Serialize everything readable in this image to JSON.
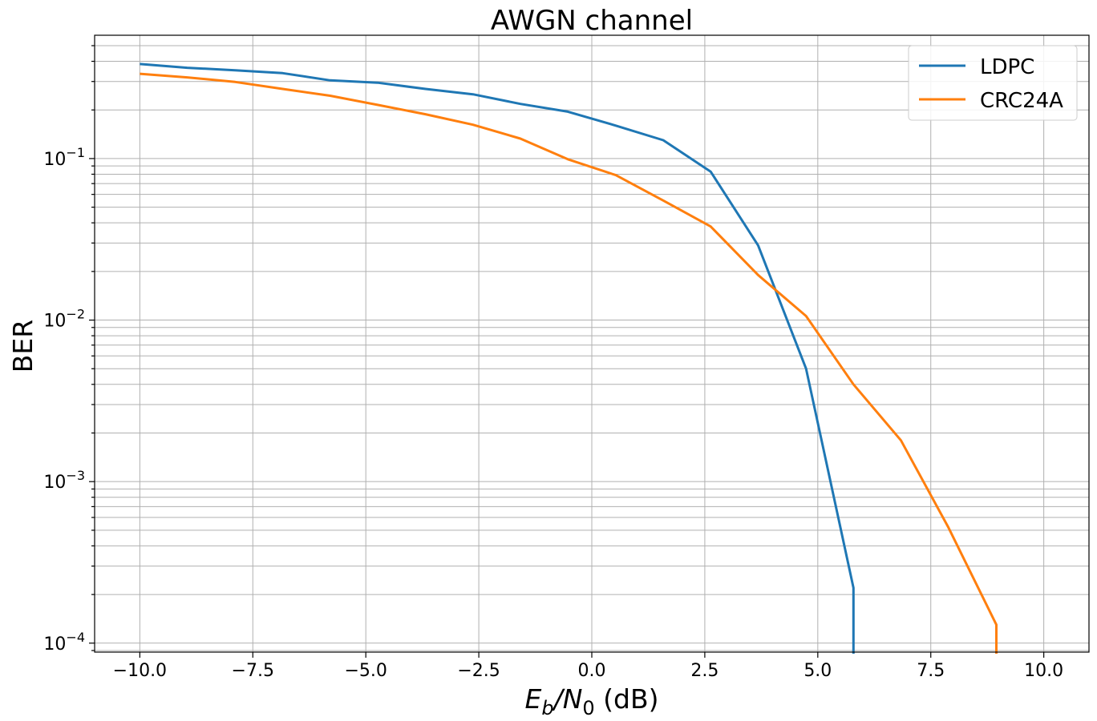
{
  "chart_data": {
    "type": "line",
    "title": "AWGN channel",
    "xlabel": {
      "pre": "E",
      "sub1": "b",
      "mid": "/N",
      "sub2": "0",
      "post": " (dB)"
    },
    "ylabel": "BER",
    "xlim": [
      -11,
      11
    ],
    "ylim": [
      8.8e-05,
      0.58
    ],
    "yscale": "log",
    "grid": true,
    "legend_position": "top-right",
    "x_ticks": [
      "−10.0",
      "−7.5",
      "−5.0",
      "−2.5",
      "0.0",
      "2.5",
      "5.0",
      "7.5",
      "10.0"
    ],
    "x_tick_values": [
      -10,
      -7.5,
      -5,
      -2.5,
      0,
      2.5,
      5,
      7.5,
      10
    ],
    "y_ticks": [
      {
        "value": 0.1,
        "base": "10",
        "exp": "−1"
      },
      {
        "value": 0.01,
        "base": "10",
        "exp": "−2"
      },
      {
        "value": 0.001,
        "base": "10",
        "exp": "−3"
      },
      {
        "value": 0.0001,
        "base": "10",
        "exp": "−4"
      }
    ],
    "series": [
      {
        "name": "LDPC",
        "color": "#1f77b4",
        "x": [
          -10,
          -8.95,
          -7.89,
          -6.84,
          -5.79,
          -4.74,
          -3.68,
          -2.63,
          -1.58,
          -0.53,
          0.53,
          1.58,
          2.63,
          3.68,
          4.74,
          5.79
        ],
        "y": [
          0.385,
          0.365,
          0.352,
          0.338,
          0.305,
          0.295,
          0.27,
          0.25,
          0.218,
          0.195,
          0.16,
          0.13,
          0.083,
          0.029,
          0.005,
          0.00022
        ]
      },
      {
        "name": "CRC24A",
        "color": "#ff7f0e",
        "x": [
          -10,
          -8.95,
          -7.89,
          -6.84,
          -5.79,
          -4.74,
          -3.68,
          -2.63,
          -1.58,
          -0.53,
          0.53,
          1.58,
          2.63,
          3.68,
          4.74,
          5.79,
          6.84,
          7.89,
          8.95
        ],
        "y": [
          0.335,
          0.318,
          0.298,
          0.27,
          0.245,
          0.215,
          0.188,
          0.162,
          0.133,
          0.099,
          0.079,
          0.055,
          0.038,
          0.019,
          0.0106,
          0.004,
          0.0018,
          0.00052,
          0.00013
        ]
      }
    ]
  }
}
